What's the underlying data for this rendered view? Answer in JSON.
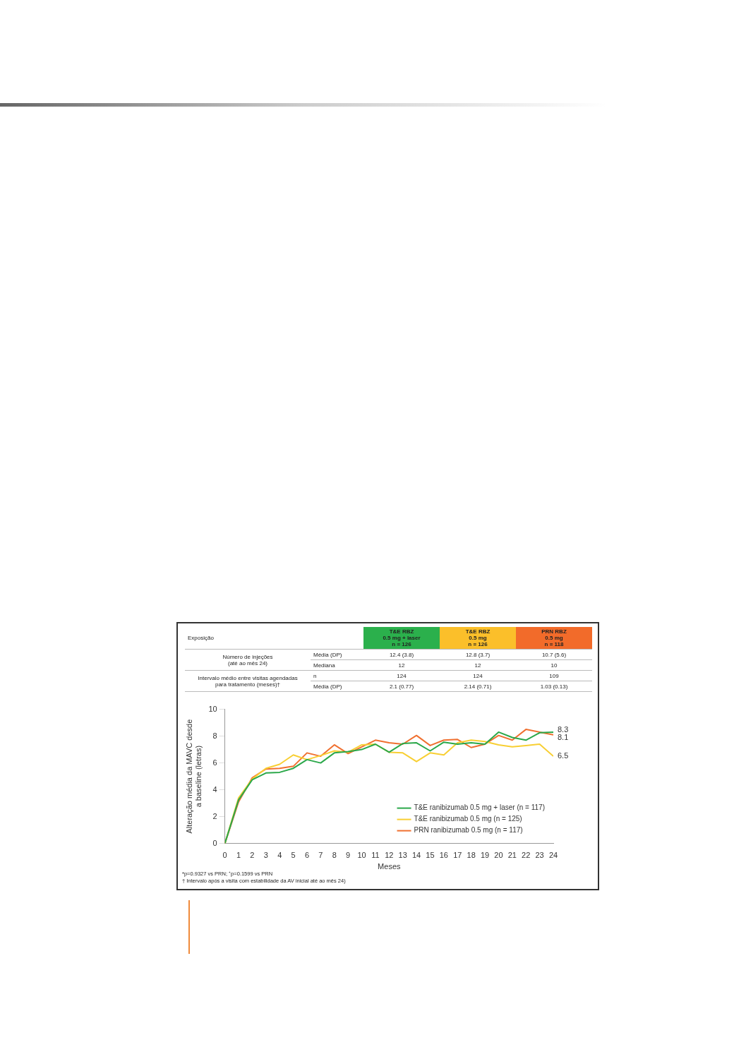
{
  "chart_data": [
    {
      "type": "other",
      "title": "Exposição",
      "categories": [
        "T&E RBZ\n0.5 mg + laser\nn = 126",
        "T&E RBZ\n0.5 mg\nn = 126",
        "PRN RBZ\n0.5 mg\nn = 118"
      ],
      "colors": [
        "#2bb04c",
        "#fbbf2a",
        "#f26b2a"
      ],
      "y_categories": [
        "Média (DP)",
        "Mediana",
        "n",
        "Média (DP)"
      ],
      "annotations": [
        "Número de injeções\n(até ao mês 24)",
        "Intervalo médio entre visitas agendadas\npara tratamento (meses)†"
      ],
      "cell_labels": [
        [
          "12.4 (3.8)",
          "12.8 (3.7)",
          "10.7 (5.6)"
        ],
        [
          "12",
          "12",
          "10"
        ],
        [
          "124",
          "124",
          "109"
        ],
        [
          "2.1 (0.77)",
          "2.14 (0.71)",
          "1.03 (0.13)"
        ]
      ]
    },
    {
      "type": "line",
      "xlabel": "Meses",
      "ylabel": "Alteração média da MAVC desde\na baseline (letras)",
      "x": [
        0,
        1,
        2,
        3,
        4,
        5,
        6,
        7,
        8,
        9,
        10,
        11,
        12,
        13,
        14,
        15,
        16,
        17,
        18,
        19,
        20,
        21,
        22,
        23,
        24
      ],
      "series": [
        {
          "name": "T&E ranibizumab 0.5 mg + laser (n = 117)",
          "color": "#2ba84a",
          "values": [
            0,
            3.25,
            4.75,
            5.25,
            5.3,
            5.6,
            6.25,
            6.0,
            6.75,
            6.85,
            7.0,
            7.4,
            6.8,
            7.45,
            7.5,
            6.9,
            7.55,
            7.4,
            7.5,
            7.4,
            8.3,
            7.9,
            7.7,
            8.25,
            8.3
          ],
          "value_labels": [
            null,
            null,
            null,
            null,
            null,
            null,
            null,
            null,
            null,
            null,
            null,
            null,
            null,
            null,
            null,
            null,
            null,
            null,
            null,
            null,
            null,
            null,
            null,
            null,
            "8.3"
          ]
        },
        {
          "name": "T&E ranibizumab 0.5 mg (n = 125)",
          "color": "#f8cf33",
          "values": [
            0,
            3.4,
            4.8,
            5.6,
            5.9,
            6.6,
            6.25,
            6.55,
            6.9,
            6.8,
            7.35,
            7.4,
            6.8,
            6.75,
            6.1,
            6.75,
            6.6,
            7.5,
            7.7,
            7.6,
            7.35,
            7.2,
            7.3,
            7.4,
            6.5
          ],
          "value_labels": [
            null,
            null,
            null,
            null,
            null,
            null,
            null,
            null,
            null,
            null,
            null,
            null,
            null,
            null,
            null,
            null,
            null,
            null,
            null,
            null,
            null,
            null,
            null,
            null,
            "6.5"
          ]
        },
        {
          "name": "PRN ranibizumab 0.5 mg (n = 117)",
          "color": "#f07030",
          "values": [
            0,
            3.1,
            4.9,
            5.55,
            5.6,
            5.75,
            6.75,
            6.5,
            7.35,
            6.7,
            7.2,
            7.7,
            7.5,
            7.4,
            8.05,
            7.3,
            7.7,
            7.75,
            7.15,
            7.4,
            8.05,
            7.7,
            8.5,
            8.3,
            8.1
          ],
          "value_labels": [
            null,
            null,
            null,
            null,
            null,
            null,
            null,
            null,
            null,
            null,
            null,
            null,
            null,
            null,
            null,
            null,
            null,
            null,
            null,
            null,
            null,
            null,
            null,
            null,
            "8.1"
          ]
        }
      ],
      "xlim": [
        0,
        24
      ],
      "xticks": [
        0,
        1,
        2,
        3,
        4,
        5,
        6,
        7,
        8,
        9,
        10,
        11,
        12,
        13,
        14,
        15,
        16,
        17,
        18,
        19,
        20,
        21,
        22,
        23,
        24
      ],
      "ylim": [
        0,
        10
      ],
      "yticks": [
        0,
        2,
        4,
        6,
        8,
        10
      ],
      "grid": false,
      "legend": "bottom right",
      "marker": "none",
      "annotations": [
        "*p=0.9327 vs PRN; ⁺p=0.1599 vs PRN",
        "† Intervalo após a visita com estabilidade da AV inicial até ao mês 24)"
      ]
    }
  ]
}
